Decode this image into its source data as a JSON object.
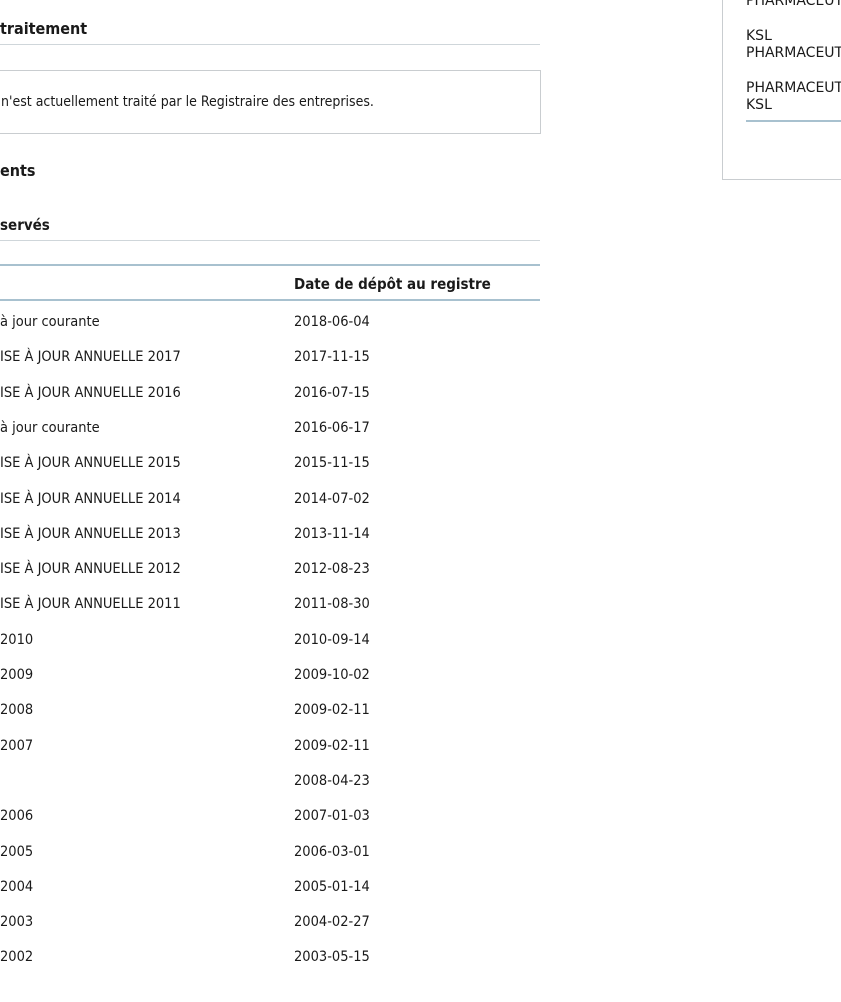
{
  "traitement": {
    "heading": "traitement",
    "message": "n'est actuellement traité par le Registraire des entreprises."
  },
  "documents_heading": "ents",
  "conserves_heading": "servés",
  "table": {
    "col_date_header": "Date de dépôt au registre",
    "rows": [
      {
        "doc": "à jour courante",
        "date": "2018-06-04"
      },
      {
        "doc": "ISE À JOUR ANNUELLE 2017",
        "date": "2017-11-15"
      },
      {
        "doc": "ISE À JOUR ANNUELLE 2016",
        "date": "2016-07-15"
      },
      {
        "doc": "à jour courante",
        "date": "2016-06-17"
      },
      {
        "doc": "ISE À JOUR ANNUELLE 2015",
        "date": "2015-11-15"
      },
      {
        "doc": "ISE À JOUR ANNUELLE 2014",
        "date": "2014-07-02"
      },
      {
        "doc": "ISE À JOUR ANNUELLE 2013",
        "date": "2013-11-14"
      },
      {
        "doc": "ISE À JOUR ANNUELLE 2012",
        "date": "2012-08-23"
      },
      {
        "doc": "ISE À JOUR ANNUELLE 2011",
        "date": "2011-08-30"
      },
      {
        "doc": "2010",
        "date": "2010-09-14"
      },
      {
        "doc": "2009",
        "date": "2009-10-02"
      },
      {
        "doc": "2008",
        "date": "2009-02-11"
      },
      {
        "doc": "2007",
        "date": "2009-02-11"
      },
      {
        "doc": "",
        "date": "2008-04-23"
      },
      {
        "doc": "2006",
        "date": "2007-01-03"
      },
      {
        "doc": "2005",
        "date": "2006-03-01"
      },
      {
        "doc": "2004",
        "date": "2005-01-14"
      },
      {
        "doc": "2003",
        "date": "2004-02-27"
      },
      {
        "doc": "2002",
        "date": "2003-05-15"
      }
    ]
  },
  "side_panel": {
    "lines": [
      "PHARMACEUTIC",
      "KSL",
      "PHARMACEUTIC",
      "PHARMACEUTIQ",
      "KSL"
    ]
  }
}
